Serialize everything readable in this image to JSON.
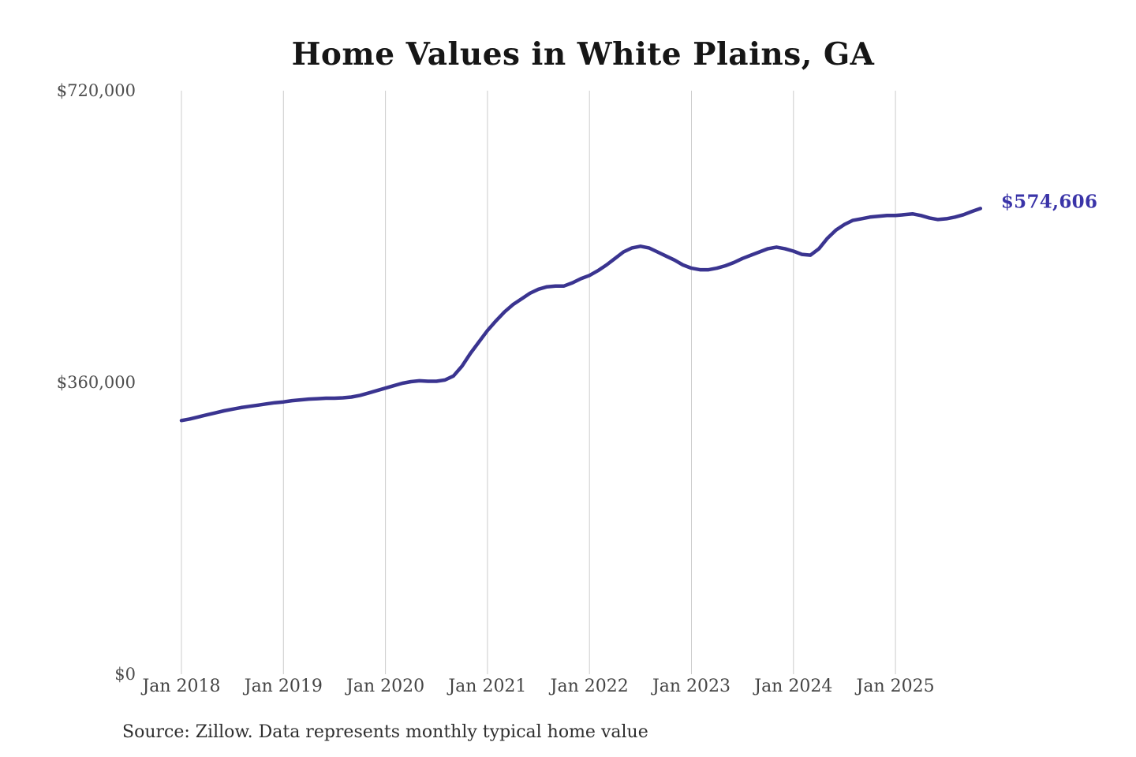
{
  "chart_data": {
    "type": "line",
    "title": "Home Values in White Plains, GA",
    "source": "Source: Zillow. Data represents monthly typical home value",
    "end_label": "$574,606",
    "latest_value": 574606,
    "series_name": "Monthly typical home value",
    "start_month": "2018-01",
    "frequency": "monthly",
    "grid": "vertical-only",
    "legend": "none",
    "y_axis_range": [
      0,
      720000
    ],
    "line_color": "#3A3490",
    "label_color": "#3A34A8",
    "grid_color": "#cccccc",
    "x_ticks": [
      "Jan 2018",
      "Jan 2019",
      "Jan 2020",
      "Jan 2021",
      "Jan 2022",
      "Jan 2023",
      "Jan 2024",
      "Jan 2025"
    ],
    "y_ticks": [
      {
        "label": "$720,000",
        "value": 720000
      },
      {
        "label": "$360,000",
        "value": 360000
      },
      {
        "label": "$0",
        "value": 0
      }
    ],
    "values": [
      313000,
      315000,
      317500,
      320000,
      322500,
      325000,
      327000,
      329000,
      330500,
      332000,
      333500,
      335000,
      336000,
      337500,
      338500,
      339500,
      340000,
      340500,
      340500,
      341000,
      342000,
      344000,
      347000,
      350000,
      353000,
      356000,
      359000,
      361000,
      362000,
      361500,
      361500,
      363000,
      368000,
      380000,
      396000,
      410000,
      424000,
      436000,
      447000,
      456000,
      463000,
      470000,
      475000,
      478000,
      479000,
      479000,
      483000,
      488000,
      492000,
      498000,
      505000,
      513000,
      521000,
      526000,
      528000,
      526000,
      521000,
      516000,
      511000,
      505000,
      501000,
      499000,
      499000,
      501000,
      504000,
      508000,
      513000,
      517000,
      521000,
      525000,
      527000,
      525000,
      522000,
      518000,
      517000,
      525000,
      538000,
      548000,
      555000,
      560000,
      562000,
      564000,
      565000,
      566000,
      566000,
      567000,
      568000,
      566000,
      563000,
      561000,
      562000,
      564000,
      567000,
      571000,
      574606
    ]
  }
}
